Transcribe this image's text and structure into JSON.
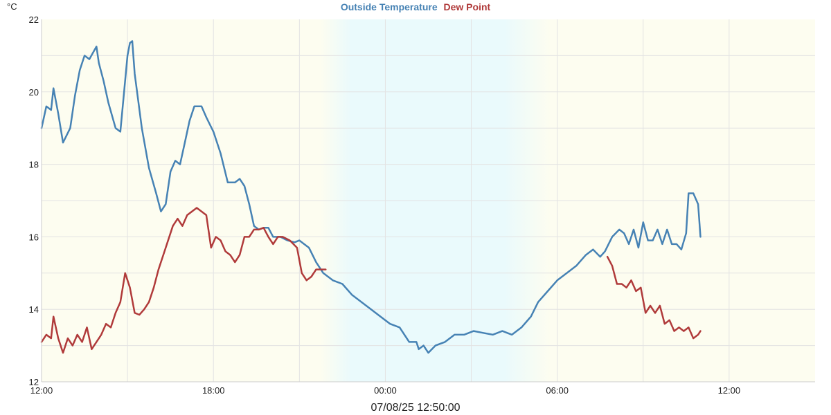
{
  "legend": [
    {
      "name": "Outside Temperature",
      "color": "#4682b4"
    },
    {
      "name": "Dew Point",
      "color": "#b03a3a"
    }
  ],
  "timestamp": "07/08/25 12:50:00",
  "chart_data": {
    "type": "line",
    "ylabel": "°C",
    "ylim": [
      12,
      22
    ],
    "yticks": [
      "12",
      "14",
      "16",
      "18",
      "20",
      "22"
    ],
    "xlim": [
      "2025-07-07 12:00",
      "2025-07-08 15:00"
    ],
    "xticks": [
      {
        "at": "2025-07-07 12:00",
        "label": "12:00"
      },
      {
        "at": "2025-07-07 18:00",
        "label": "18:00"
      },
      {
        "at": "2025-07-08 00:00",
        "label": "00:00"
      },
      {
        "at": "2025-07-08 06:00",
        "label": "06:00"
      },
      {
        "at": "2025-07-08 12:00",
        "label": "12:00"
      }
    ],
    "grid": true,
    "legend_position": "top-center",
    "background": {
      "day_color": "#fdfdf0",
      "night_color": "#eafafc",
      "night_start": "2025-07-07 22:00",
      "night_end": "2025-07-08 05:30"
    },
    "series": [
      {
        "name": "Outside Temperature",
        "color": "#4682b4",
        "points": [
          [
            "2025-07-07 12:00",
            19.0
          ],
          [
            "2025-07-07 12:10",
            19.6
          ],
          [
            "2025-07-07 12:20",
            19.5
          ],
          [
            "2025-07-07 12:25",
            20.1
          ],
          [
            "2025-07-07 12:35",
            19.4
          ],
          [
            "2025-07-07 12:45",
            18.6
          ],
          [
            "2025-07-07 13:00",
            19.0
          ],
          [
            "2025-07-07 13:10",
            19.9
          ],
          [
            "2025-07-07 13:20",
            20.6
          ],
          [
            "2025-07-07 13:30",
            21.0
          ],
          [
            "2025-07-07 13:40",
            20.9
          ],
          [
            "2025-07-07 13:55",
            21.25
          ],
          [
            "2025-07-07 14:00",
            20.8
          ],
          [
            "2025-07-07 14:10",
            20.3
          ],
          [
            "2025-07-07 14:20",
            19.7
          ],
          [
            "2025-07-07 14:35",
            19.0
          ],
          [
            "2025-07-07 14:45",
            18.9
          ],
          [
            "2025-07-07 15:00",
            21.0
          ],
          [
            "2025-07-07 15:05",
            21.35
          ],
          [
            "2025-07-07 15:10",
            21.4
          ],
          [
            "2025-07-07 15:15",
            20.5
          ],
          [
            "2025-07-07 15:30",
            19.0
          ],
          [
            "2025-07-07 15:45",
            17.9
          ],
          [
            "2025-07-07 16:00",
            17.2
          ],
          [
            "2025-07-07 16:10",
            16.7
          ],
          [
            "2025-07-07 16:20",
            16.9
          ],
          [
            "2025-07-07 16:30",
            17.8
          ],
          [
            "2025-07-07 16:40",
            18.1
          ],
          [
            "2025-07-07 16:50",
            18.0
          ],
          [
            "2025-07-07 17:00",
            18.6
          ],
          [
            "2025-07-07 17:10",
            19.2
          ],
          [
            "2025-07-07 17:20",
            19.6
          ],
          [
            "2025-07-07 17:35",
            19.6
          ],
          [
            "2025-07-07 17:45",
            19.3
          ],
          [
            "2025-07-07 18:00",
            18.9
          ],
          [
            "2025-07-07 18:15",
            18.3
          ],
          [
            "2025-07-07 18:30",
            17.5
          ],
          [
            "2025-07-07 18:45",
            17.5
          ],
          [
            "2025-07-07 18:55",
            17.6
          ],
          [
            "2025-07-07 19:05",
            17.4
          ],
          [
            "2025-07-07 19:15",
            16.9
          ],
          [
            "2025-07-07 19:25",
            16.3
          ],
          [
            "2025-07-07 19:35",
            16.2
          ],
          [
            "2025-07-07 19:45",
            16.25
          ],
          [
            "2025-07-07 19:55",
            16.25
          ],
          [
            "2025-07-07 20:05",
            16.0
          ],
          [
            "2025-07-07 20:20",
            16.0
          ],
          [
            "2025-07-07 20:35",
            15.9
          ],
          [
            "2025-07-07 20:50",
            15.85
          ],
          [
            "2025-07-07 21:00",
            15.9
          ],
          [
            "2025-07-07 21:10",
            15.8
          ],
          [
            "2025-07-07 21:20",
            15.7
          ],
          [
            "2025-07-07 21:35",
            15.3
          ],
          [
            "2025-07-07 21:50",
            15.0
          ],
          [
            "2025-07-07 22:10",
            14.8
          ],
          [
            "2025-07-07 22:30",
            14.7
          ],
          [
            "2025-07-07 22:50",
            14.4
          ],
          [
            "2025-07-07 23:10",
            14.2
          ],
          [
            "2025-07-07 23:30",
            14.0
          ],
          [
            "2025-07-07 23:50",
            13.8
          ],
          [
            "2025-07-08 00:10",
            13.6
          ],
          [
            "2025-07-08 00:30",
            13.5
          ],
          [
            "2025-07-08 00:50",
            13.1
          ],
          [
            "2025-07-08 01:05",
            13.1
          ],
          [
            "2025-07-08 01:10",
            12.9
          ],
          [
            "2025-07-08 01:20",
            13.0
          ],
          [
            "2025-07-08 01:30",
            12.8
          ],
          [
            "2025-07-08 01:45",
            13.0
          ],
          [
            "2025-07-08 02:05",
            13.1
          ],
          [
            "2025-07-08 02:25",
            13.3
          ],
          [
            "2025-07-08 02:45",
            13.3
          ],
          [
            "2025-07-08 03:05",
            13.4
          ],
          [
            "2025-07-08 03:25",
            13.35
          ],
          [
            "2025-07-08 03:45",
            13.3
          ],
          [
            "2025-07-08 04:05",
            13.4
          ],
          [
            "2025-07-08 04:25",
            13.3
          ],
          [
            "2025-07-08 04:45",
            13.5
          ],
          [
            "2025-07-08 05:05",
            13.8
          ],
          [
            "2025-07-08 05:20",
            14.2
          ],
          [
            "2025-07-08 05:40",
            14.5
          ],
          [
            "2025-07-08 06:00",
            14.8
          ],
          [
            "2025-07-08 06:20",
            15.0
          ],
          [
            "2025-07-08 06:40",
            15.2
          ],
          [
            "2025-07-08 07:00",
            15.5
          ],
          [
            "2025-07-08 07:15",
            15.65
          ],
          [
            "2025-07-08 07:30",
            15.45
          ],
          [
            "2025-07-08 07:40",
            15.6
          ],
          [
            "2025-07-08 07:55",
            16.0
          ],
          [
            "2025-07-08 08:10",
            16.2
          ],
          [
            "2025-07-08 08:20",
            16.1
          ],
          [
            "2025-07-08 08:30",
            15.8
          ],
          [
            "2025-07-08 08:40",
            16.2
          ],
          [
            "2025-07-08 08:50",
            15.7
          ],
          [
            "2025-07-08 09:00",
            16.4
          ],
          [
            "2025-07-08 09:10",
            15.9
          ],
          [
            "2025-07-08 09:20",
            15.9
          ],
          [
            "2025-07-08 09:30",
            16.2
          ],
          [
            "2025-07-08 09:40",
            15.8
          ],
          [
            "2025-07-08 09:50",
            16.2
          ],
          [
            "2025-07-08 10:00",
            15.8
          ],
          [
            "2025-07-08 10:10",
            15.8
          ],
          [
            "2025-07-08 10:20",
            15.65
          ],
          [
            "2025-07-08 10:30",
            16.1
          ],
          [
            "2025-07-08 10:35",
            17.2
          ],
          [
            "2025-07-08 10:45",
            17.2
          ],
          [
            "2025-07-08 10:55",
            16.9
          ],
          [
            "2025-07-08 11:00",
            16.0
          ]
        ]
      },
      {
        "name": "Dew Point",
        "color": "#b03a3a",
        "points": [
          [
            "2025-07-07 12:00",
            13.1
          ],
          [
            "2025-07-07 12:10",
            13.3
          ],
          [
            "2025-07-07 12:20",
            13.2
          ],
          [
            "2025-07-07 12:25",
            13.8
          ],
          [
            "2025-07-07 12:35",
            13.2
          ],
          [
            "2025-07-07 12:45",
            12.8
          ],
          [
            "2025-07-07 12:55",
            13.2
          ],
          [
            "2025-07-07 13:05",
            13.0
          ],
          [
            "2025-07-07 13:15",
            13.3
          ],
          [
            "2025-07-07 13:25",
            13.1
          ],
          [
            "2025-07-07 13:35",
            13.5
          ],
          [
            "2025-07-07 13:45",
            12.9
          ],
          [
            "2025-07-07 13:55",
            13.1
          ],
          [
            "2025-07-07 14:05",
            13.3
          ],
          [
            "2025-07-07 14:15",
            13.6
          ],
          [
            "2025-07-07 14:25",
            13.5
          ],
          [
            "2025-07-07 14:35",
            13.9
          ],
          [
            "2025-07-07 14:45",
            14.2
          ],
          [
            "2025-07-07 14:55",
            15.0
          ],
          [
            "2025-07-07 15:05",
            14.6
          ],
          [
            "2025-07-07 15:15",
            13.9
          ],
          [
            "2025-07-07 15:25",
            13.85
          ],
          [
            "2025-07-07 15:35",
            14.0
          ],
          [
            "2025-07-07 15:45",
            14.2
          ],
          [
            "2025-07-07 15:55",
            14.6
          ],
          [
            "2025-07-07 16:05",
            15.1
          ],
          [
            "2025-07-07 16:20",
            15.7
          ],
          [
            "2025-07-07 16:35",
            16.3
          ],
          [
            "2025-07-07 16:45",
            16.5
          ],
          [
            "2025-07-07 16:55",
            16.3
          ],
          [
            "2025-07-07 17:05",
            16.6
          ],
          [
            "2025-07-07 17:15",
            16.7
          ],
          [
            "2025-07-07 17:25",
            16.8
          ],
          [
            "2025-07-07 17:35",
            16.7
          ],
          [
            "2025-07-07 17:45",
            16.6
          ],
          [
            "2025-07-07 17:55",
            15.7
          ],
          [
            "2025-07-07 18:05",
            16.0
          ],
          [
            "2025-07-07 18:15",
            15.9
          ],
          [
            "2025-07-07 18:25",
            15.6
          ],
          [
            "2025-07-07 18:35",
            15.5
          ],
          [
            "2025-07-07 18:45",
            15.3
          ],
          [
            "2025-07-07 18:55",
            15.5
          ],
          [
            "2025-07-07 19:05",
            16.0
          ],
          [
            "2025-07-07 19:15",
            16.0
          ],
          [
            "2025-07-07 19:25",
            16.2
          ],
          [
            "2025-07-07 19:35",
            16.2
          ],
          [
            "2025-07-07 19:45",
            16.25
          ],
          [
            "2025-07-07 19:55",
            16.0
          ],
          [
            "2025-07-07 20:05",
            15.8
          ],
          [
            "2025-07-07 20:15",
            16.0
          ],
          [
            "2025-07-07 20:25",
            16.0
          ],
          [
            "2025-07-07 20:40",
            15.9
          ],
          [
            "2025-07-07 20:55",
            15.7
          ],
          [
            "2025-07-07 21:05",
            15.0
          ],
          [
            "2025-07-07 21:15",
            14.8
          ],
          [
            "2025-07-07 21:25",
            14.9
          ],
          [
            "2025-07-07 21:35",
            15.1
          ],
          [
            "2025-07-07 21:45",
            15.1
          ],
          [
            "2025-07-07 21:55",
            15.1
          ]
        ]
      },
      {
        "name": "Dew Point",
        "color": "#b03a3a",
        "points": [
          [
            "2025-07-08 07:45",
            15.45
          ],
          [
            "2025-07-08 07:55",
            15.2
          ],
          [
            "2025-07-08 08:05",
            14.7
          ],
          [
            "2025-07-08 08:15",
            14.7
          ],
          [
            "2025-07-08 08:25",
            14.6
          ],
          [
            "2025-07-08 08:35",
            14.8
          ],
          [
            "2025-07-08 08:45",
            14.5
          ],
          [
            "2025-07-08 08:55",
            14.6
          ],
          [
            "2025-07-08 09:05",
            13.9
          ],
          [
            "2025-07-08 09:15",
            14.1
          ],
          [
            "2025-07-08 09:25",
            13.9
          ],
          [
            "2025-07-08 09:35",
            14.1
          ],
          [
            "2025-07-08 09:45",
            13.6
          ],
          [
            "2025-07-08 09:55",
            13.7
          ],
          [
            "2025-07-08 10:05",
            13.4
          ],
          [
            "2025-07-08 10:15",
            13.5
          ],
          [
            "2025-07-08 10:25",
            13.4
          ],
          [
            "2025-07-08 10:35",
            13.5
          ],
          [
            "2025-07-08 10:45",
            13.2
          ],
          [
            "2025-07-08 10:55",
            13.3
          ],
          [
            "2025-07-08 11:00",
            13.4
          ]
        ]
      }
    ]
  }
}
